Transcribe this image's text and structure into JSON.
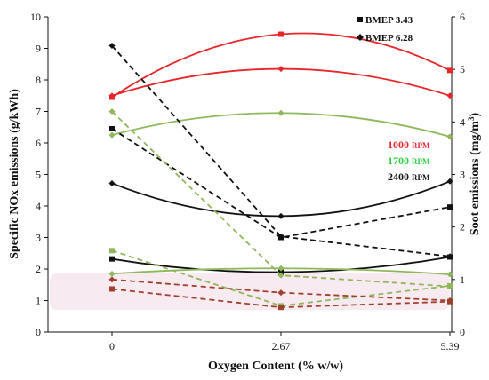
{
  "chart_data": {
    "type": "line",
    "xlabel": "Oxygen Content (% w/w)",
    "ylabel_left": "Specific NOx emissions (g/kWh)",
    "ylabel_right_prefix": "Soot emissions (mg/m",
    "ylabel_right_sup": "3",
    "ylabel_right_suffix": ")",
    "x_categories": [
      "0",
      "2.67",
      "5.39"
    ],
    "ylim_left": [
      0,
      10
    ],
    "ylim_right": [
      0,
      6
    ],
    "left_ticks": [
      "0",
      "1",
      "2",
      "3",
      "4",
      "5",
      "6",
      "7",
      "8",
      "9",
      "10"
    ],
    "right_ticks": [
      "0",
      "1",
      "2",
      "3",
      "4",
      "5",
      "6"
    ],
    "legend_marker": [
      {
        "label": "BMEP 3.43",
        "marker": "square"
      },
      {
        "label": "BMEP 6.28",
        "marker": "diamond"
      }
    ],
    "legend_speed": [
      {
        "value": "1000",
        "unit": "RPM",
        "color": "#e8262a"
      },
      {
        "value": "1700",
        "unit": "RPM",
        "color": "#2ecc40"
      },
      {
        "value": "2400",
        "unit": "RPM",
        "color": "#111111"
      }
    ],
    "series": [
      {
        "quantity": "NOx",
        "bmep": "3.43",
        "rpm": "1000",
        "color": "#e8262a",
        "style": "solid",
        "marker": "square",
        "values": [
          7.45,
          9.45,
          8.3
        ]
      },
      {
        "quantity": "NOx",
        "bmep": "6.28",
        "rpm": "1000",
        "color": "#e8262a",
        "style": "solid",
        "marker": "diamond",
        "values": [
          7.5,
          8.35,
          7.5
        ]
      },
      {
        "quantity": "NOx",
        "bmep": "6.28",
        "rpm": "1700",
        "color": "#8fb85a",
        "style": "solid",
        "marker": "diamond",
        "values": [
          6.25,
          6.95,
          6.2
        ]
      },
      {
        "quantity": "NOx",
        "bmep": "6.28",
        "rpm": "2400",
        "color": "#111111",
        "style": "solid",
        "marker": "diamond",
        "values": [
          4.72,
          3.68,
          4.78
        ]
      },
      {
        "quantity": "NOx",
        "bmep": "3.43",
        "rpm": "2400",
        "color": "#111111",
        "style": "solid",
        "marker": "square",
        "values": [
          2.32,
          1.9,
          2.38
        ]
      },
      {
        "quantity": "NOx",
        "bmep": "6.28",
        "rpm": "1700",
        "color": "#8fb85a",
        "style": "solid",
        "marker": "diamond",
        "values": [
          1.85,
          2.02,
          1.83
        ]
      },
      {
        "quantity": "Soot",
        "bmep": "6.28",
        "rpm": "2400",
        "color": "#111111",
        "style": "dashed",
        "marker": "diamond",
        "values": [
          5.45,
          1.82,
          1.44
        ]
      },
      {
        "quantity": "Soot",
        "bmep": "3.43",
        "rpm": "2400",
        "color": "#111111",
        "style": "dashed",
        "marker": "square",
        "values": [
          3.87,
          1.8,
          2.38
        ]
      },
      {
        "quantity": "Soot",
        "bmep": "6.28",
        "rpm": "1700",
        "color": "#8fb85a",
        "style": "dashed",
        "marker": "diamond",
        "values": [
          4.2,
          1.08,
          0.87
        ]
      },
      {
        "quantity": "Soot",
        "bmep": "3.43",
        "rpm": "1700",
        "color": "#8fb85a",
        "style": "dashed",
        "marker": "square",
        "values": [
          1.55,
          0.5,
          0.88
        ]
      },
      {
        "quantity": "Soot",
        "bmep": "6.28",
        "rpm": "1000",
        "color": "#a0412d",
        "style": "dashed",
        "marker": "diamond",
        "values": [
          1.0,
          0.75,
          0.6
        ]
      },
      {
        "quantity": "Soot",
        "bmep": "3.43",
        "rpm": "1000",
        "color": "#a0412d",
        "style": "dashed",
        "marker": "square",
        "values": [
          0.82,
          0.47,
          0.58
        ]
      }
    ]
  }
}
